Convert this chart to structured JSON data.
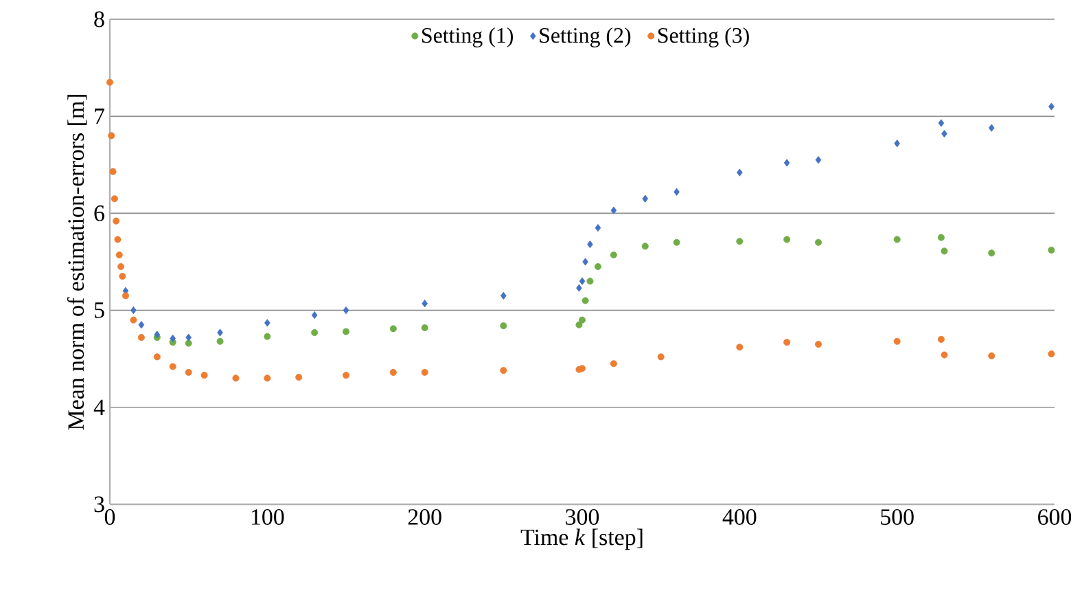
{
  "chart_data": {
    "type": "scatter",
    "xlabel": "Time *k*  [step]",
    "ylabel": "Mean norm of estimation-errors [m]",
    "xlim": [
      0,
      600
    ],
    "xticks": [
      0,
      100,
      200,
      300,
      400,
      500,
      600
    ],
    "ylim": [
      3,
      8
    ],
    "yticks": [
      3,
      4,
      5,
      6,
      7,
      8
    ],
    "grid": "y",
    "legend": "top",
    "series": [
      {
        "name": "Setting (1)",
        "color": "#70ad47",
        "marker": "circle",
        "x": [
          30,
          40,
          50,
          70,
          100,
          130,
          150,
          180,
          200,
          250,
          298,
          300,
          302,
          305,
          310,
          320,
          340,
          360,
          400,
          430,
          450,
          500,
          528,
          530,
          560,
          598
        ],
        "values": [
          4.72,
          4.67,
          4.66,
          4.68,
          4.73,
          4.77,
          4.78,
          4.81,
          4.82,
          4.84,
          4.85,
          4.9,
          5.1,
          5.3,
          5.45,
          5.57,
          5.66,
          5.7,
          5.71,
          5.73,
          5.7,
          5.73,
          5.75,
          5.61,
          5.59,
          5.62
        ]
      },
      {
        "name": "Setting (2)",
        "color": "#4472c4",
        "marker": "diamond",
        "x": [
          10,
          15,
          20,
          30,
          40,
          50,
          70,
          100,
          130,
          150,
          200,
          250,
          298,
          300,
          302,
          305,
          310,
          320,
          340,
          360,
          400,
          430,
          450,
          500,
          528,
          530,
          560,
          598
        ],
        "values": [
          5.2,
          5.0,
          4.85,
          4.75,
          4.71,
          4.72,
          4.77,
          4.87,
          4.95,
          5.0,
          5.07,
          5.15,
          5.23,
          5.3,
          5.5,
          5.68,
          5.85,
          6.03,
          6.15,
          6.22,
          6.42,
          6.52,
          6.55,
          6.72,
          6.93,
          6.82,
          6.88,
          7.1
        ]
      },
      {
        "name": "Setting (3)",
        "color": "#ed7d31",
        "marker": "circle",
        "x": [
          0,
          1,
          2,
          3,
          4,
          5,
          6,
          7,
          8,
          10,
          15,
          20,
          30,
          40,
          50,
          60,
          80,
          100,
          120,
          150,
          180,
          200,
          250,
          298,
          300,
          320,
          350,
          400,
          430,
          450,
          500,
          528,
          530,
          560,
          598
        ],
        "values": [
          7.35,
          6.8,
          6.43,
          6.15,
          5.92,
          5.73,
          5.57,
          5.45,
          5.35,
          5.15,
          4.9,
          4.72,
          4.52,
          4.42,
          4.36,
          4.33,
          4.3,
          4.3,
          4.31,
          4.33,
          4.36,
          4.36,
          4.38,
          4.39,
          4.4,
          4.45,
          4.52,
          4.62,
          4.67,
          4.65,
          4.68,
          4.7,
          4.54,
          4.53,
          4.55
        ]
      }
    ]
  }
}
